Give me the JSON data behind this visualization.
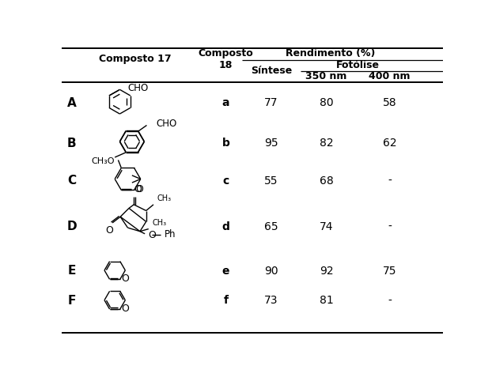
{
  "col_composto17": "Composto 17",
  "col_composto18": "Composto\n18",
  "col_rendimento": "Rendimento (%)",
  "col_fotolise": "Fotólise",
  "col_sintese": "Síntese",
  "col_350": "350 nm",
  "col_400": "400 nm",
  "rows": [
    {
      "label": "A",
      "compound18": "a",
      "sintese": "77",
      "nm350": "80",
      "nm400": "58"
    },
    {
      "label": "B",
      "compound18": "b",
      "sintese": "95",
      "nm350": "82",
      "nm400": "62"
    },
    {
      "label": "C",
      "compound18": "c",
      "sintese": "55",
      "nm350": "68",
      "nm400": "-"
    },
    {
      "label": "D",
      "compound18": "d",
      "sintese": "65",
      "nm350": "74",
      "nm400": "-"
    },
    {
      "label": "E",
      "compound18": "e",
      "sintese": "90",
      "nm350": "92",
      "nm400": "75"
    },
    {
      "label": "F",
      "compound18": "f",
      "sintese": "73",
      "nm350": "81",
      "nm400": "-"
    }
  ],
  "bg_color": "#ffffff",
  "text_color": "#000000"
}
